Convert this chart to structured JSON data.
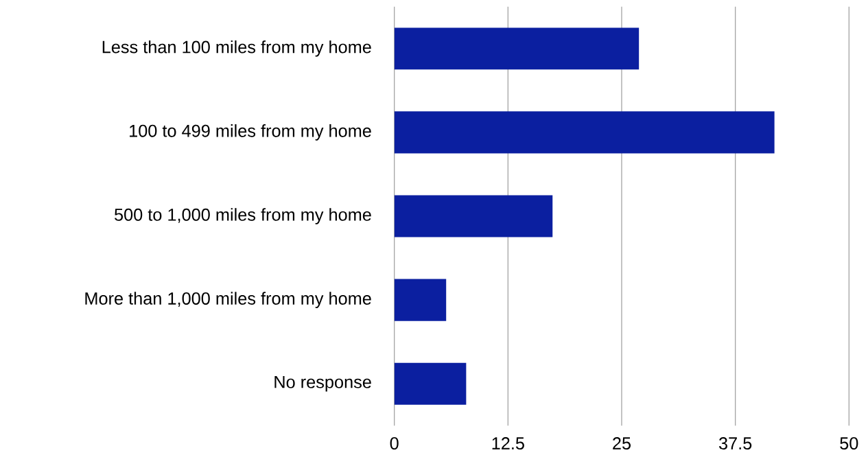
{
  "chart_data": {
    "type": "bar",
    "orientation": "horizontal",
    "categories": [
      "Less than 100 miles from my home",
      "100 to 499 miles from my home",
      "500 to 1,000 miles from my home",
      "More than 1,000 miles from my home",
      "No response"
    ],
    "values": [
      26.9,
      41.8,
      17.4,
      5.7,
      7.9
    ],
    "color": "#0b1fa0",
    "xlim": [
      0,
      50
    ],
    "xticks": [
      0,
      12.5,
      25,
      37.5,
      50
    ],
    "grid": "x"
  }
}
